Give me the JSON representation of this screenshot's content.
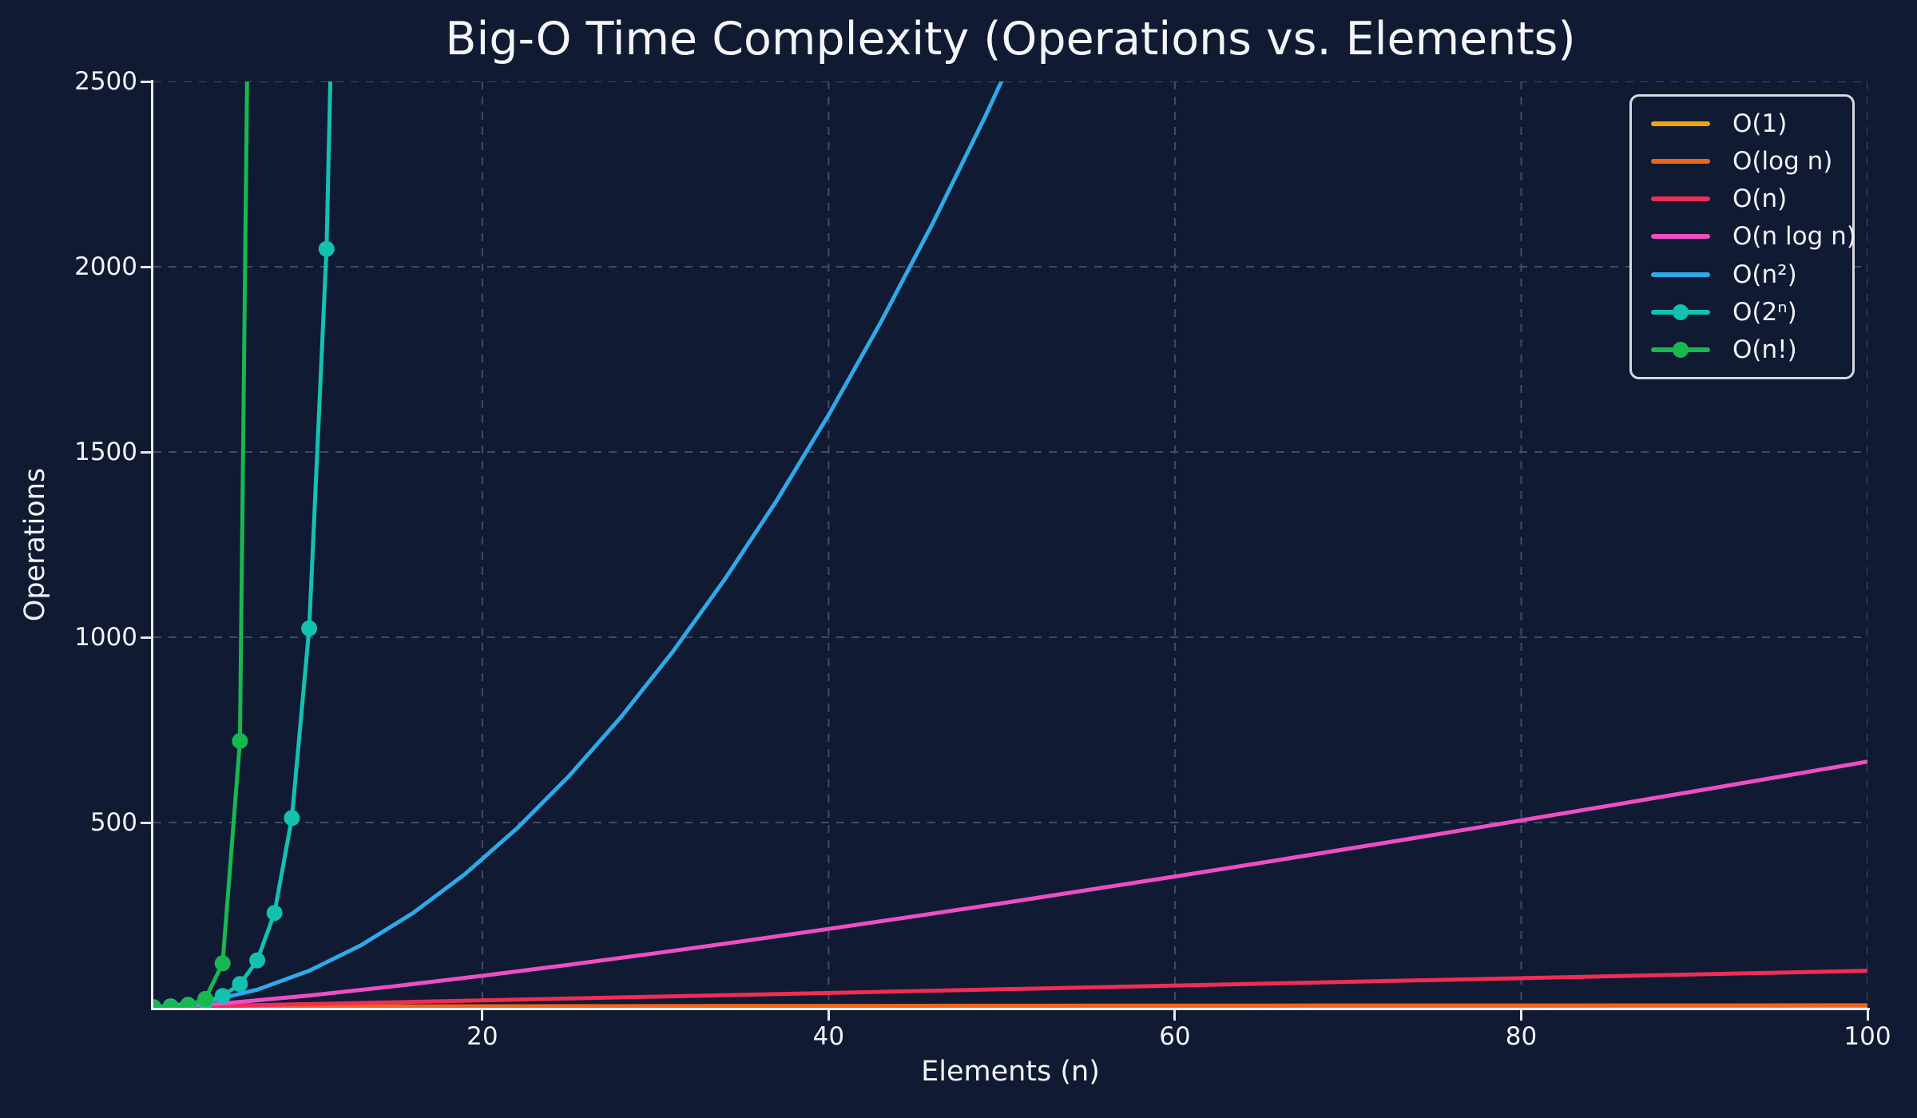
{
  "title": "Big-O Time Complexity (Operations vs. Elements)",
  "chart_data": {
    "type": "line",
    "title": "Big-O Time Complexity (Operations vs. Elements)",
    "xlabel": "Elements (n)",
    "ylabel": "Operations",
    "xlim": [
      1,
      100
    ],
    "ylim": [
      0,
      2500
    ],
    "xticks": [
      20,
      40,
      60,
      80,
      100
    ],
    "yticks": [
      500,
      1000,
      1500,
      2000,
      2500
    ],
    "grid": true,
    "grid_style": "dashed",
    "legend_position": "upper right",
    "background_color": "#111a33",
    "text_color": "#f2f3f5",
    "grid_color": "#4e5875",
    "spine_color": "#e9eaee",
    "series": [
      {
        "name": "O(1)",
        "color": "#f0a30a",
        "markers": false,
        "x": [
          1,
          100
        ],
        "y": [
          1,
          1
        ]
      },
      {
        "name": "O(log n)",
        "color": "#ef661a",
        "markers": false,
        "x": [
          1,
          2,
          3,
          4,
          6,
          8,
          12,
          16,
          24,
          32,
          48,
          64,
          100
        ],
        "y": [
          0,
          1,
          1.58,
          2,
          2.58,
          3,
          3.58,
          4,
          4.58,
          5,
          5.58,
          6,
          6.64
        ]
      },
      {
        "name": "O(n)",
        "color": "#ef2d55",
        "markers": false,
        "x": [
          1,
          100
        ],
        "y": [
          1,
          100
        ]
      },
      {
        "name": "O(n log n)",
        "color": "#ee4ec4",
        "markers": false,
        "x": [
          1,
          5,
          10,
          15,
          20,
          25,
          30,
          35,
          40,
          45,
          50,
          55,
          60,
          65,
          70,
          75,
          80,
          85,
          90,
          95,
          100
        ],
        "y": [
          0,
          11.6,
          33.2,
          58.6,
          86.4,
          116.1,
          147.2,
          179.5,
          212.9,
          247.1,
          282.2,
          318.0,
          354.4,
          391.4,
          429.0,
          467.1,
          505.8,
          544.8,
          584.3,
          624.2,
          664.4
        ]
      },
      {
        "name": "O(n²)",
        "color": "#2fa9e8",
        "markers": false,
        "x": [
          1,
          4,
          7,
          10,
          13,
          16,
          19,
          22,
          25,
          28,
          31,
          34,
          37,
          40,
          43,
          46,
          49,
          52
        ],
        "y": [
          1,
          16,
          49,
          100,
          169,
          256,
          361,
          484,
          625,
          784,
          961,
          1156,
          1369,
          1600,
          1849,
          2116,
          2401,
          2704
        ]
      },
      {
        "name": "O(2ⁿ)",
        "color": "#13c1af",
        "markers": true,
        "x": [
          1,
          2,
          3,
          4,
          5,
          6,
          7,
          8,
          9,
          10,
          11,
          12
        ],
        "y": [
          2,
          4,
          8,
          16,
          32,
          64,
          128,
          256,
          512,
          1024,
          2048,
          4096
        ]
      },
      {
        "name": "O(n!)",
        "color": "#18b850",
        "markers": true,
        "x": [
          1,
          2,
          3,
          4,
          5,
          6,
          7
        ],
        "y": [
          1,
          2,
          6,
          24,
          120,
          720,
          5040
        ]
      }
    ]
  }
}
